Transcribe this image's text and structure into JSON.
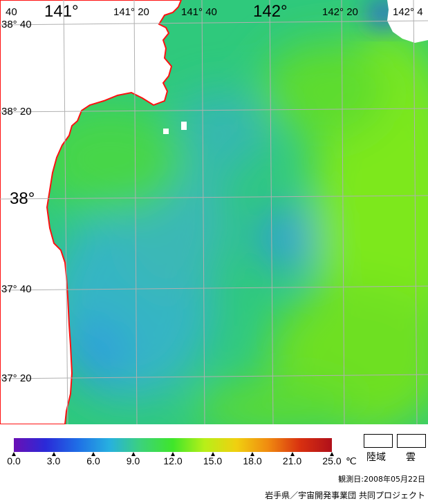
{
  "map": {
    "lon_labels": [
      {
        "text": "40",
        "major": false
      },
      {
        "text": "141°",
        "major": true
      },
      {
        "text": "141° 20",
        "major": false
      },
      {
        "text": "141° 40",
        "major": false
      },
      {
        "text": "142°",
        "major": true
      },
      {
        "text": "142° 20",
        "major": false
      },
      {
        "text": "142° 4",
        "major": false
      }
    ],
    "lat_labels": [
      {
        "text": "38° 40",
        "major": false
      },
      {
        "text": "38° 20",
        "major": false
      },
      {
        "text": "38°",
        "major": true
      },
      {
        "text": "37° 40",
        "major": false
      },
      {
        "text": "37° 20",
        "major": false
      }
    ],
    "colors": {
      "land": "#ffffff",
      "coastline": "#ff1010",
      "grid": "#b0b0b0",
      "warm": "#7ae81e",
      "mid": "#2ecf6a",
      "cool": "#30a8d8"
    }
  },
  "colorbar": {
    "ticks": [
      "0.0",
      "3.0",
      "6.0",
      "9.0",
      "12.0",
      "15.0",
      "18.0",
      "21.0",
      "25.0"
    ],
    "unit": "℃",
    "stops": [
      "#6a0fb5",
      "#2a2ad8",
      "#1f6ee6",
      "#27b0e0",
      "#3cd27a",
      "#3fe62a",
      "#b8ef18",
      "#f0d010",
      "#f08a10",
      "#d83010",
      "#b0101a"
    ]
  },
  "legend": {
    "land_label": "陸域",
    "cloud_label": "雲"
  },
  "observation_date": "観測日:2008年05月22日",
  "credit": "岩手県／宇宙開発事業団 共同プロジェクト"
}
